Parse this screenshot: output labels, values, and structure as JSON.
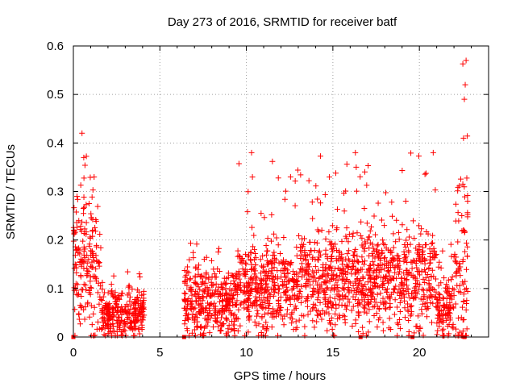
{
  "chart_data": {
    "type": "scatter",
    "title": "Day 273 of 2016, SRMTID for receiver batf",
    "xlabel": "GPS time / hours",
    "ylabel": "SRMTID / TECUs",
    "xlim": [
      0,
      24
    ],
    "ylim": [
      0,
      0.6
    ],
    "xticks": [
      0,
      5,
      10,
      15,
      20
    ],
    "yticks": [
      0,
      0.1,
      0.2,
      0.3,
      0.4,
      0.5,
      0.6
    ],
    "xtick_labels": [
      "0",
      "5",
      "10",
      "15",
      "20"
    ],
    "ytick_labels": [
      "0",
      "0.1",
      "0.2",
      "0.3",
      "0.4",
      "0.5",
      "0.6"
    ],
    "grid": true,
    "marker": "+",
    "color": "#ff0000",
    "series": [
      {
        "name": "SRMTID",
        "segments": [
          {
            "x_start": 0.0,
            "x_end": 1.6,
            "base": 0.15,
            "spread": 0.12,
            "peak": 0.33
          },
          {
            "x_start": 1.6,
            "x_end": 4.1,
            "base": 0.05,
            "spread": 0.04,
            "peak": 0.14
          },
          {
            "x_start": 6.4,
            "x_end": 9.5,
            "base": 0.07,
            "spread": 0.06,
            "peak": 0.2
          },
          {
            "x_start": 9.5,
            "x_end": 13.0,
            "base": 0.1,
            "spread": 0.07,
            "peak": 0.38
          },
          {
            "x_start": 13.0,
            "x_end": 17.0,
            "base": 0.12,
            "spread": 0.08,
            "peak": 0.38
          },
          {
            "x_start": 17.0,
            "x_end": 21.0,
            "base": 0.12,
            "spread": 0.08,
            "peak": 0.38
          },
          {
            "x_start": 21.0,
            "x_end": 22.0,
            "base": 0.06,
            "spread": 0.05,
            "peak": 0.2
          },
          {
            "x_start": 22.0,
            "x_end": 22.8,
            "base": 0.15,
            "spread": 0.15,
            "peak": 0.57
          }
        ],
        "highlights": [
          {
            "x": 0.5,
            "y": 0.42
          },
          {
            "x": 0.6,
            "y": 0.37
          },
          {
            "x": 1.2,
            "y": 0.33
          },
          {
            "x": 10.3,
            "y": 0.38
          },
          {
            "x": 10.35,
            "y": 0.33
          },
          {
            "x": 14.8,
            "y": 0.33
          },
          {
            "x": 16.3,
            "y": 0.38
          },
          {
            "x": 16.35,
            "y": 0.35
          },
          {
            "x": 20.8,
            "y": 0.38
          },
          {
            "x": 22.7,
            "y": 0.57
          },
          {
            "x": 22.65,
            "y": 0.52
          },
          {
            "x": 22.6,
            "y": 0.49
          },
          {
            "x": 22.55,
            "y": 0.41
          }
        ],
        "edge_marks": [
          0.0,
          6.4,
          16.6,
          19.6,
          22.6
        ]
      }
    ]
  }
}
